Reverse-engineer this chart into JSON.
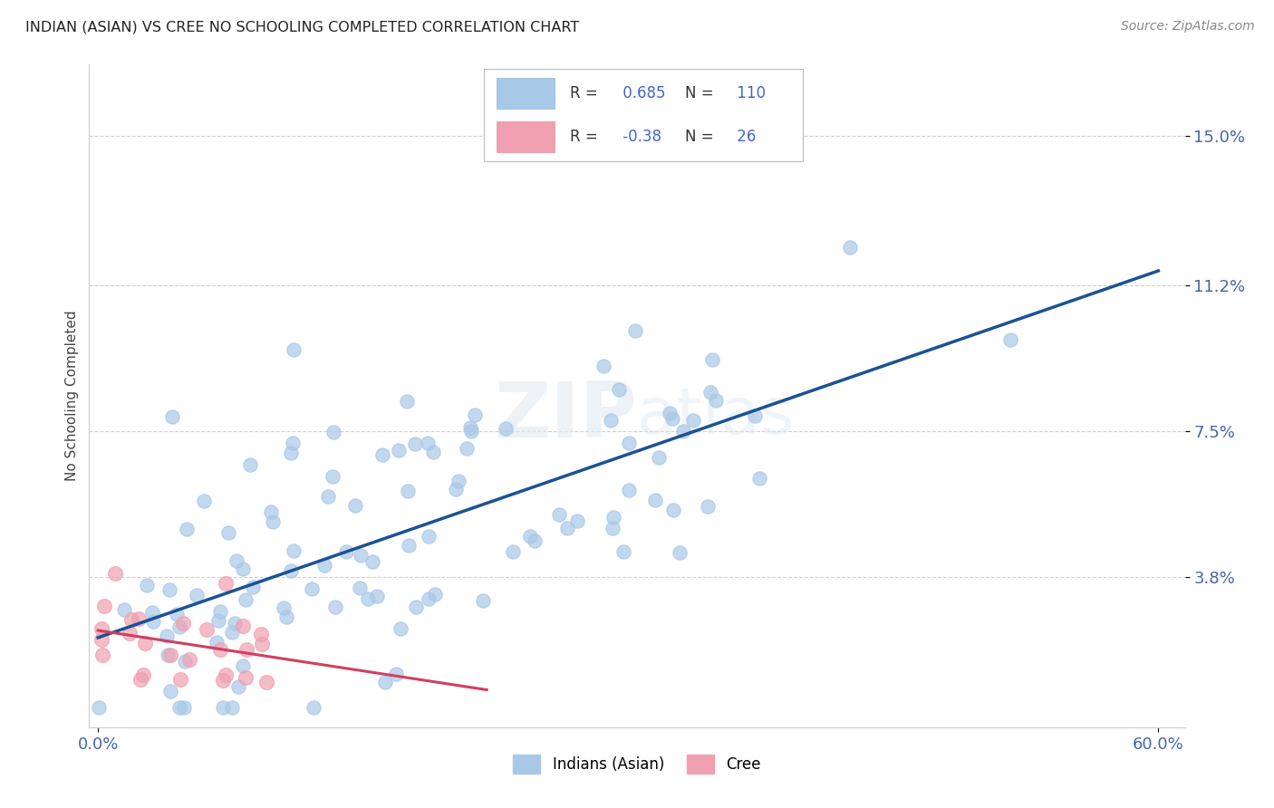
{
  "title": "INDIAN (ASIAN) VS CREE NO SCHOOLING COMPLETED CORRELATION CHART",
  "source": "Source: ZipAtlas.com",
  "ylabel": "No Schooling Completed",
  "xlim": [
    -0.005,
    0.615
  ],
  "ylim": [
    0.0,
    0.168
  ],
  "xtick_positions": [
    0.0,
    0.6
  ],
  "xtick_labels": [
    "0.0%",
    "60.0%"
  ],
  "ytick_values": [
    0.038,
    0.075,
    0.112,
    0.15
  ],
  "ytick_labels": [
    "3.8%",
    "7.5%",
    "11.2%",
    "15.0%"
  ],
  "r_indian": 0.685,
  "n_indian": 110,
  "r_cree": -0.38,
  "n_cree": 26,
  "indian_color": "#a8c8e8",
  "indian_line_color": "#1a5296",
  "cree_color": "#f0a0b0",
  "cree_line_color": "#d04060",
  "background_color": "#ffffff",
  "grid_color": "#d0d0d0",
  "watermark": "ZIPatlas",
  "legend_label_indian": "Indians (Asian)",
  "legend_label_cree": "Cree"
}
